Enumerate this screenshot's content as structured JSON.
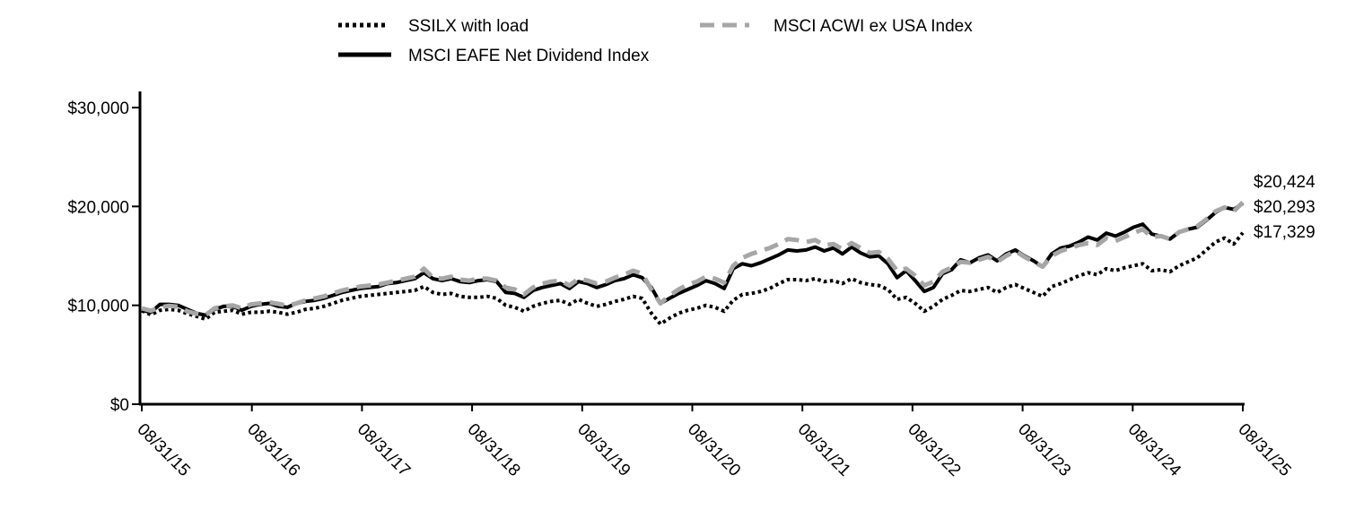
{
  "chart_data": {
    "type": "line",
    "title": "",
    "xlabel": "",
    "ylabel": "",
    "x_start": "08/31/15",
    "x_end": "08/31/25",
    "x_tick_labels": [
      "08/31/15",
      "08/31/16",
      "08/31/17",
      "08/31/18",
      "08/31/19",
      "08/31/20",
      "08/31/21",
      "08/31/22",
      "08/31/23",
      "08/31/24",
      "08/31/25"
    ],
    "ylim": [
      0,
      30000
    ],
    "y_ticks": [
      0,
      10000,
      20000,
      30000
    ],
    "y_tick_labels": [
      "$0",
      "$10,000",
      "$20,000",
      "$30,000"
    ],
    "grid": false,
    "legend_position": "top",
    "end_value_labels": [
      "$20,424",
      "$20,293",
      "$17,329"
    ],
    "series": [
      {
        "name": "SSILX with load",
        "style": "dotted",
        "color": "#000000",
        "values": [
          9450,
          9050,
          9500,
          9600,
          9500,
          9150,
          8900,
          8600,
          9300,
          9400,
          9500,
          9100,
          9300,
          9300,
          9400,
          9300,
          9100,
          9300,
          9600,
          9700,
          9900,
          10200,
          10500,
          10700,
          10900,
          11000,
          11100,
          11200,
          11300,
          11400,
          11500,
          11900,
          11300,
          11100,
          11200,
          10900,
          10800,
          10800,
          10900,
          10700,
          10000,
          9800,
          9400,
          9900,
          10200,
          10400,
          10500,
          10100,
          10600,
          10200,
          9900,
          10100,
          10400,
          10600,
          10900,
          10700,
          9200,
          8100,
          8700,
          9200,
          9500,
          9700,
          10000,
          9800,
          9400,
          10500,
          11100,
          11200,
          11400,
          11700,
          12200,
          12600,
          12600,
          12500,
          12700,
          12400,
          12500,
          12200,
          12700,
          12300,
          12100,
          12000,
          11600,
          10600,
          10800,
          10200,
          9400,
          9900,
          10600,
          11000,
          11500,
          11400,
          11600,
          11800,
          11300,
          11800,
          12100,
          11700,
          11300,
          10900,
          11900,
          12200,
          12600,
          13000,
          13300,
          13100,
          13700,
          13500,
          13800,
          14000,
          14200,
          13500,
          13600,
          13400,
          14000,
          14400,
          14800,
          15600,
          16400,
          16800,
          16200,
          17329
        ]
      },
      {
        "name": "MSCI ACWI ex USA Index",
        "style": "dashed",
        "color": "#a6a6a6",
        "values": [
          9700,
          9450,
          9800,
          9950,
          9850,
          9400,
          9150,
          9000,
          9700,
          9900,
          10000,
          9700,
          10100,
          10200,
          10300,
          10150,
          9950,
          10200,
          10500,
          10700,
          10900,
          11200,
          11500,
          11700,
          11900,
          12000,
          12100,
          12300,
          12500,
          12700,
          12900,
          13700,
          12800,
          12700,
          12900,
          12600,
          12500,
          12700,
          12700,
          12500,
          11800,
          11600,
          11100,
          11800,
          12200,
          12400,
          12500,
          12000,
          12700,
          12500,
          12200,
          12400,
          12800,
          13100,
          13500,
          13200,
          11600,
          10200,
          11000,
          11600,
          12100,
          12400,
          12900,
          12700,
          12300,
          14000,
          14800,
          15200,
          15500,
          15800,
          16200,
          16700,
          16600,
          16400,
          16600,
          16100,
          16200,
          15700,
          16300,
          15800,
          15300,
          15400,
          14700,
          13500,
          13700,
          13000,
          12000,
          12400,
          13400,
          13800,
          14400,
          14300,
          14600,
          14900,
          14400,
          15000,
          15500,
          14900,
          14400,
          13900,
          15000,
          15500,
          15800,
          16100,
          16300,
          16100,
          16800,
          16500,
          16900,
          17300,
          17700,
          16900,
          17000,
          16700,
          17400,
          17700,
          18000,
          18700,
          19500,
          19900,
          19500,
          20424
        ]
      },
      {
        "name": "MSCI EAFE Net Dividend Index",
        "style": "solid",
        "color": "#000000",
        "values": [
          9500,
          9300,
          10100,
          10100,
          10000,
          9600,
          9200,
          9000,
          9600,
          9900,
          9900,
          9500,
          9900,
          10100,
          10200,
          9900,
          9800,
          10200,
          10400,
          10500,
          10700,
          11000,
          11300,
          11500,
          11700,
          11800,
          11900,
          12200,
          12300,
          12500,
          12700,
          13300,
          12700,
          12500,
          12700,
          12400,
          12300,
          12500,
          12600,
          12400,
          11300,
          11200,
          10800,
          11500,
          11800,
          12000,
          12200,
          11700,
          12400,
          12200,
          11800,
          12100,
          12500,
          12700,
          13100,
          12800,
          11800,
          10200,
          10700,
          11200,
          11600,
          12000,
          12500,
          12200,
          11700,
          13700,
          14200,
          14000,
          14300,
          14700,
          15100,
          15600,
          15500,
          15600,
          15900,
          15500,
          15800,
          15200,
          15900,
          15300,
          14900,
          15000,
          14200,
          12800,
          13500,
          12500,
          11400,
          11800,
          13200,
          13600,
          14600,
          14300,
          14800,
          15100,
          14500,
          15200,
          15600,
          15000,
          14500,
          13900,
          15200,
          15800,
          16000,
          16400,
          16900,
          16600,
          17300,
          17000,
          17400,
          17900,
          18200,
          17200,
          17000,
          16700,
          17400,
          17700,
          17900,
          18600,
          19400,
          19900,
          19700,
          20293
        ]
      }
    ]
  }
}
